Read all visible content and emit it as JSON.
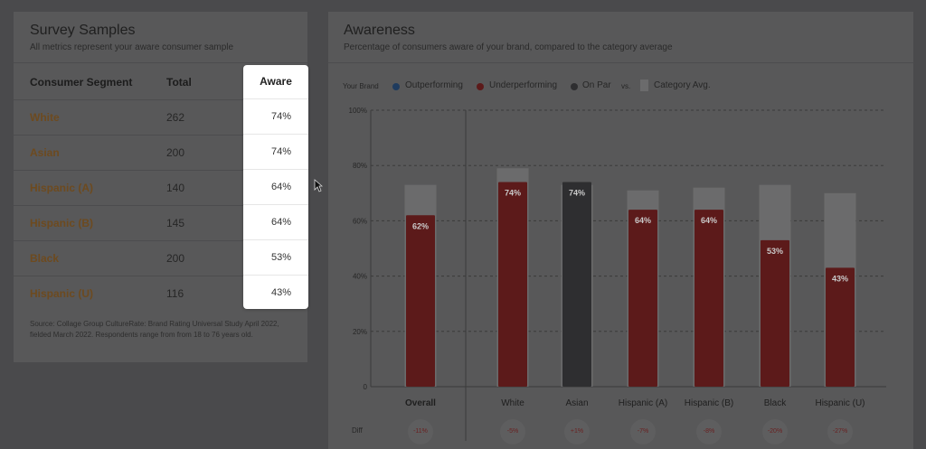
{
  "survey": {
    "title": "Survey Samples",
    "subtitle": "All metrics represent your aware consumer sample",
    "columns": {
      "segment": "Consumer Segment",
      "total": "Total",
      "aware": "Aware"
    },
    "rows": [
      {
        "segment": "White",
        "total": "262",
        "aware": "74%"
      },
      {
        "segment": "Asian",
        "total": "200",
        "aware": "74%"
      },
      {
        "segment": "Hispanic (A)",
        "total": "140",
        "aware": "64%"
      },
      {
        "segment": "Hispanic (B)",
        "total": "145",
        "aware": "64%"
      },
      {
        "segment": "Black",
        "total": "200",
        "aware": "53%"
      },
      {
        "segment": "Hispanic (U)",
        "total": "116",
        "aware": "43%"
      }
    ],
    "source": "Source: Collage Group CultureRate: Brand Rating Universal Study April 2022, fielded March 2022. Respondents range from from 18 to 76 years old."
  },
  "awareness": {
    "title": "Awareness",
    "subtitle": "Percentage of consumers aware of your brand, compared to the category average",
    "legend": {
      "your_brand": "Your Brand",
      "outperforming": "Outperforming",
      "underperforming": "Underperforming",
      "on_par": "On Par",
      "vs": "vs.",
      "category_avg": "Category Avg."
    },
    "diff_label": "Diff"
  },
  "colors": {
    "outperforming": "#1f3b5e",
    "underperforming": "#5c1a1a",
    "on_par": "#2e2e30",
    "category_avg": "#6b6b6c"
  },
  "chart_data": {
    "type": "bar",
    "categories": [
      "Overall",
      "White",
      "Asian",
      "Hispanic (A)",
      "Hispanic (B)",
      "Black",
      "Hispanic (U)"
    ],
    "series": [
      {
        "name": "Category Avg.",
        "values": [
          73,
          79,
          73,
          71,
          72,
          73,
          70
        ]
      },
      {
        "name": "Your Brand",
        "values": [
          62,
          74,
          74,
          64,
          64,
          53,
          43
        ],
        "status": [
          "underperforming",
          "underperforming",
          "on_par",
          "underperforming",
          "underperforming",
          "underperforming",
          "underperforming"
        ]
      }
    ],
    "bar_labels": [
      "62%",
      "74%",
      "74%",
      "64%",
      "64%",
      "53%",
      "43%"
    ],
    "diff": [
      "-11%",
      "-5%",
      "+1%",
      "-7%",
      "-8%",
      "-20%",
      "-27%"
    ],
    "yticks": [
      "0",
      "20%",
      "40%",
      "60%",
      "80%",
      "100%"
    ],
    "ylim": [
      0,
      100
    ],
    "grid": true
  }
}
